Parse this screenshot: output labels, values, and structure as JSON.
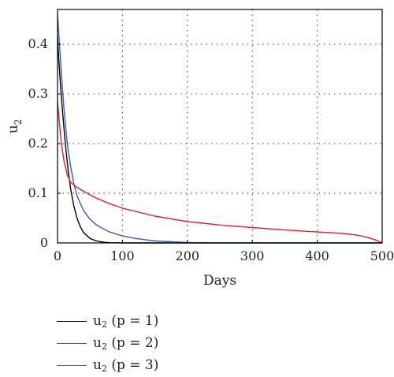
{
  "chart_data": {
    "type": "line",
    "title": "",
    "xlabel": "Days",
    "ylabel": "u",
    "ylabel_subscript": "2",
    "xlim": [
      0,
      500
    ],
    "ylim": [
      0,
      0.47
    ],
    "xticks": [
      0,
      100,
      200,
      300,
      400,
      500
    ],
    "yticks": [
      0,
      0.1,
      0.2,
      0.3,
      0.4
    ],
    "ytick_labels": [
      "0",
      "0.1",
      "0.2",
      "0.3",
      "0.4"
    ],
    "grid": "dotted",
    "legend_position": "below",
    "series": [
      {
        "name": "u",
        "name_subscript": "2",
        "name_suffix": " (p = 1)",
        "color": "#000000",
        "x": [
          0,
          2,
          5,
          8,
          12,
          16,
          20,
          25,
          30,
          35,
          40,
          50,
          60,
          70,
          80,
          100,
          150,
          200,
          300,
          400,
          500
        ],
        "y": [
          0.415,
          0.37,
          0.31,
          0.26,
          0.2,
          0.15,
          0.11,
          0.075,
          0.05,
          0.033,
          0.021,
          0.009,
          0.004,
          0.0015,
          0.0005,
          0,
          0,
          0,
          0,
          0,
          0
        ]
      },
      {
        "name": "u",
        "name_subscript": "2",
        "name_suffix": " (p = 2)",
        "color": "#3a5fb0",
        "x": [
          0,
          3,
          6,
          10,
          15,
          20,
          25,
          30,
          40,
          50,
          60,
          80,
          100,
          120,
          150,
          200,
          250,
          300,
          400,
          500
        ],
        "y": [
          0.46,
          0.4,
          0.34,
          0.27,
          0.2,
          0.155,
          0.12,
          0.095,
          0.065,
          0.048,
          0.036,
          0.022,
          0.014,
          0.009,
          0.004,
          0.001,
          0,
          0,
          0,
          0
        ]
      },
      {
        "name": "u",
        "name_subscript": "2",
        "name_suffix": " (p = 3)",
        "color": "#e0202a",
        "x": [
          0,
          3,
          6,
          10,
          15,
          20,
          25,
          30,
          40,
          50,
          60,
          80,
          100,
          150,
          200,
          250,
          300,
          350,
          400,
          440,
          460,
          475,
          490,
          500
        ],
        "y": [
          0.285,
          0.24,
          0.2,
          0.165,
          0.137,
          0.122,
          0.117,
          0.112,
          0.104,
          0.097,
          0.09,
          0.079,
          0.07,
          0.054,
          0.043,
          0.036,
          0.031,
          0.026,
          0.022,
          0.019,
          0.016,
          0.012,
          0.006,
          0
        ]
      }
    ]
  }
}
